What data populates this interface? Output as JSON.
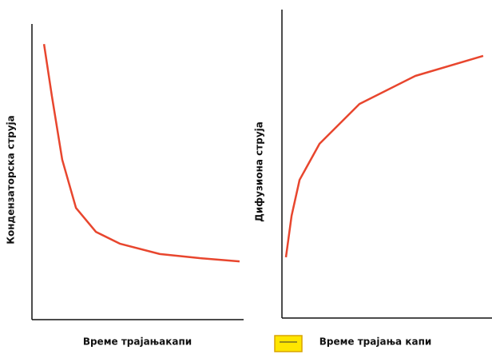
{
  "chart_data": [
    {
      "type": "line",
      "x_label": "Време трајањакапи",
      "y_label": "Кондензаторска струја",
      "xlim": [
        0,
        10
      ],
      "ylim": [
        0,
        10
      ],
      "x": [
        0.57,
        0.94,
        1.43,
        2.08,
        3.02,
        4.15,
        6.04,
        7.92,
        9.81
      ],
      "series": [
        {
          "color": "#e8462e",
          "values": [
            9.32,
            7.57,
            5.41,
            3.78,
            2.97,
            2.57,
            2.22,
            2.08,
            1.97
          ]
        }
      ]
    },
    {
      "type": "line",
      "x_label": "Време трајања капи",
      "y_label": "Дифузиона струја",
      "xlim": [
        0,
        10
      ],
      "ylim": [
        0,
        10
      ],
      "x": [
        0.19,
        0.46,
        0.84,
        1.79,
        3.69,
        6.35,
        9.58
      ],
      "series": [
        {
          "color": "#e8462e",
          "values": [
            1.97,
            3.32,
            4.48,
            5.65,
            6.94,
            7.85,
            8.5
          ]
        }
      ]
    }
  ]
}
